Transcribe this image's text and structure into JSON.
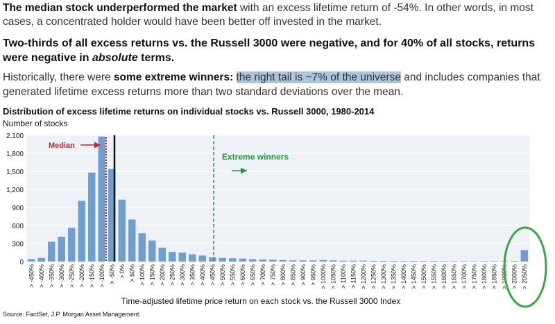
{
  "text": {
    "p1_b": "The median stock underperformed the market",
    "p1_rest": " with an excess lifetime return of -54%.  In other words, in most cases, a concentrated holder would have been better off invested in the market.",
    "p2_a": "Two-thirds of all excess returns vs. the Russell 3000 were negative, and for 40% of all stocks, returns were negative in ",
    "p2_i": "absolute",
    "p2_b": " terms.",
    "p3_a": "Historically, there were ",
    "p3_b": "some extreme winners:",
    "p3_sp": " ",
    "p3_hl": "the right tail is ~7% of the universe",
    "p3_c": " and includes companies that generated lifetime excess returns more than two standard deviations over the mean.",
    "source": "Source: FactSet, J.P. Morgan Asset Management."
  },
  "chart_data": {
    "type": "bar",
    "title": "Distribution of excess lifetime returns on individual stocks vs. Russell 3000, 1980-2014",
    "ylabel": "Number of stocks",
    "xlabel": "Time-adjusted lifetime price return on each stock vs. the Russell 3000 Index",
    "ylim": [
      0,
      2100
    ],
    "yticks": [
      0,
      300,
      600,
      900,
      1200,
      1500,
      1800,
      2100
    ],
    "ytick_labels": [
      "0",
      "300",
      "600",
      "900",
      "1,200",
      "1,500",
      "1,800",
      "2,100"
    ],
    "grid": true,
    "categories": [
      "> -450%",
      "> -400%",
      "> -350%",
      "> -300%",
      "> -250%",
      "> -200%",
      "> -150%",
      "> -100%",
      "> -50%",
      "> 0%",
      "> 50%",
      "> 100%",
      "> 150%",
      "> 200%",
      "> 250%",
      "> 300%",
      "> 350%",
      "> 400%",
      "> 450%",
      "> 500%",
      "> 550%",
      "> 600%",
      "> 650%",
      "> 700%",
      "> 750%",
      "> 800%",
      "> 850%",
      "> 900%",
      "> 950%",
      "> 1000%",
      "> 1050%",
      "> 1100%",
      "> 1150%",
      "> 1200%",
      "> 1250%",
      "> 1300%",
      "> 1350%",
      "> 1400%",
      "> 1450%",
      "> 1500%",
      "> 1550%",
      "> 1600%",
      "> 1650%",
      "> 1700%",
      "> 1750%",
      "> 1800%",
      "> 1850%",
      "> 1900%",
      "> 2000%",
      "> 2050%"
    ],
    "values": [
      40,
      60,
      330,
      410,
      560,
      1010,
      1480,
      2080,
      1540,
      1030,
      700,
      470,
      350,
      230,
      160,
      150,
      120,
      100,
      70,
      60,
      55,
      50,
      40,
      35,
      30,
      25,
      20,
      20,
      20,
      25,
      20,
      15,
      15,
      15,
      12,
      12,
      10,
      10,
      10,
      10,
      10,
      8,
      8,
      8,
      8,
      8,
      8,
      8,
      10,
      190
    ],
    "bar_color": "#6f9fd1",
    "annotations": {
      "median": {
        "label": "Median",
        "color": "#c0252a"
      },
      "extreme": {
        "label": "Extreme winners",
        "color": "#1f9a3e"
      },
      "circle_color": "#33aa44"
    }
  }
}
